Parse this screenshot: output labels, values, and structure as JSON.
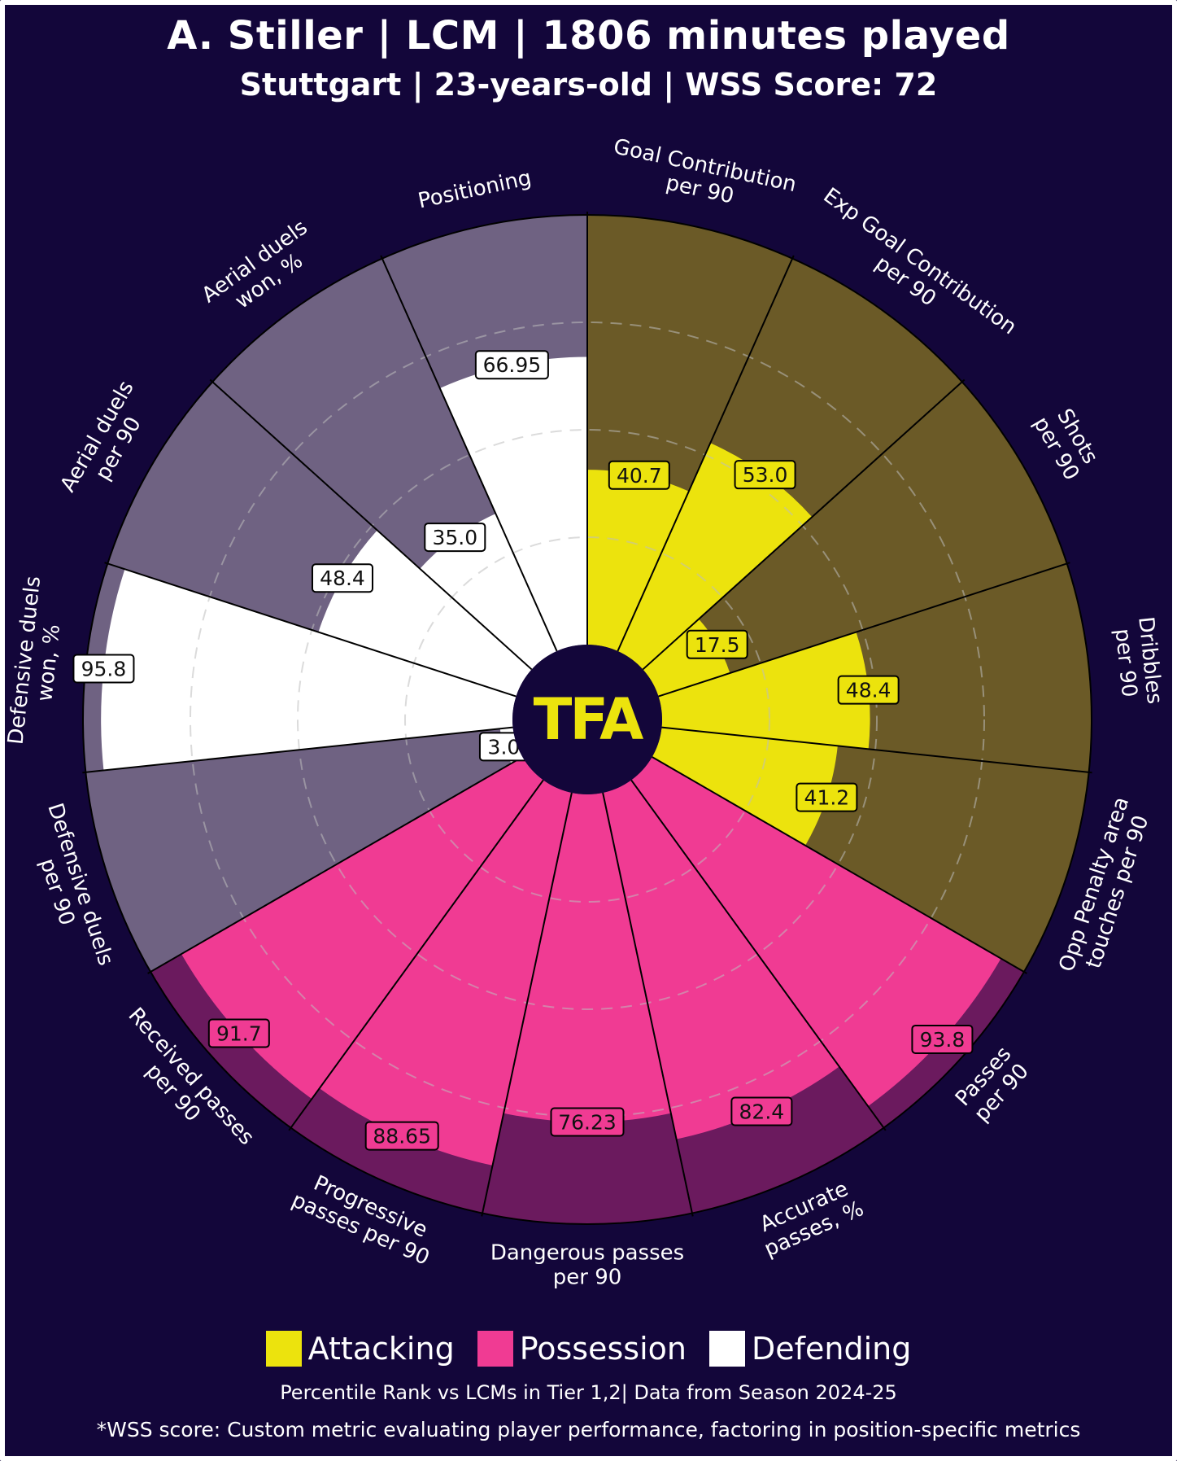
{
  "header": {
    "title": "A. Stiller | LCM | 1806 minutes played",
    "subtitle": "Stuttgart | 23-years-old | WSS Score: 72"
  },
  "center_logo": "TFA",
  "legend": {
    "items": [
      {
        "label": "Attacking",
        "color": "#ece30d"
      },
      {
        "label": "Possession",
        "color": "#f03b93"
      },
      {
        "label": "Defending",
        "color": "#ffffff"
      }
    ]
  },
  "footer": {
    "line1": "Percentile Rank vs LCMs in Tier 1,2| Data from Season 2024-25",
    "line2": "*WSS score: Custom metric evaluating player performance, factoring in position-specific metrics"
  },
  "colors": {
    "background": "#13063a",
    "attacking_fill": "#ece30d",
    "attacking_bg": "#6b5a27",
    "possession_fill": "#f03b93",
    "possession_bg": "#6b1a5e",
    "defending_fill": "#ffffff",
    "defending_bg": "#6f6282"
  },
  "chart_data": {
    "type": "radial-bar",
    "title": "A. Stiller | LCM | 1806 minutes played",
    "subtitle": "Stuttgart | 23-years-old | WSS Score: 72",
    "range": [
      0,
      100
    ],
    "metrics": [
      {
        "label": [
          "Goal Contribution",
          "per 90"
        ],
        "value": 40.7,
        "label_text": "40.7",
        "group": "Attacking"
      },
      {
        "label": [
          "Exp Goal Contribution",
          "per 90"
        ],
        "value": 53.0,
        "label_text": "53.0",
        "group": "Attacking"
      },
      {
        "label": [
          "Shots",
          "per 90"
        ],
        "value": 17.5,
        "label_text": "17.5",
        "group": "Attacking"
      },
      {
        "label": [
          "Dribbles",
          "per 90"
        ],
        "value": 48.4,
        "label_text": "48.4",
        "group": "Attacking"
      },
      {
        "label": [
          "Opp Penalty area",
          "touches per 90"
        ],
        "value": 41.2,
        "label_text": "41.2",
        "group": "Attacking"
      },
      {
        "label": [
          "Passes",
          "per 90"
        ],
        "value": 93.8,
        "label_text": "93.8",
        "group": "Possession"
      },
      {
        "label": [
          "Accurate",
          "passes, %"
        ],
        "value": 82.4,
        "label_text": "82.4",
        "group": "Possession"
      },
      {
        "label": [
          "Dangerous passes",
          "per 90"
        ],
        "value": 76.23,
        "label_text": "76.23",
        "group": "Possession"
      },
      {
        "label": [
          "Progressive",
          "passes per 90"
        ],
        "value": 88.65,
        "label_text": "88.65",
        "group": "Possession"
      },
      {
        "label": [
          "Received passes",
          "per 90"
        ],
        "value": 91.7,
        "label_text": "91.7",
        "group": "Possession"
      },
      {
        "label": [
          "Defensive duels",
          "per 90"
        ],
        "value": 3.0,
        "label_text": "3.0",
        "group": "Defending"
      },
      {
        "label": [
          "Defensive duels",
          "won, %"
        ],
        "value": 95.8,
        "label_text": "95.8",
        "group": "Defending"
      },
      {
        "label": [
          "Aerial duels",
          "per 90"
        ],
        "value": 48.4,
        "label_text": "48.4",
        "group": "Defending"
      },
      {
        "label": [
          "Aerial duels",
          "won, %"
        ],
        "value": 35.0,
        "label_text": "35.0",
        "group": "Defending"
      },
      {
        "label": [
          "Positioning"
        ],
        "value": 66.95,
        "label_text": "66.95",
        "group": "Defending"
      }
    ]
  }
}
